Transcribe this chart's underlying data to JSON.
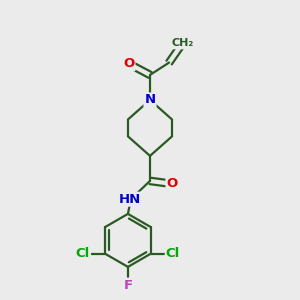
{
  "bg_color": "#ebebeb",
  "bond_color": "#2a5a24",
  "bond_width": 1.6,
  "atom_colors": {
    "O": "#e00000",
    "N": "#0000cc",
    "Cl": "#00aa00",
    "F": "#bb44bb",
    "C": "#2a5a24",
    "H": "#666666"
  },
  "font_size": 9.5
}
